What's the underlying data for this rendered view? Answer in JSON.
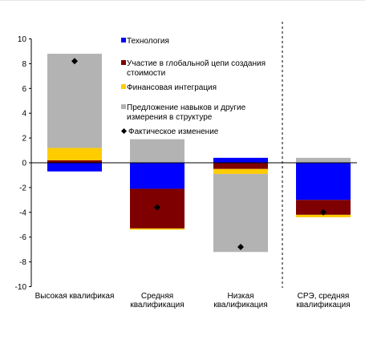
{
  "chart_data": {
    "type": "bar",
    "stacked": true,
    "ylim": [
      -10,
      10
    ],
    "yticks": [
      10,
      8,
      6,
      4,
      2,
      0,
      -2,
      -4,
      -6,
      -8,
      -10
    ],
    "categories": [
      [
        "Высокая квалификая"
      ],
      [
        "Средняя",
        "квалификация"
      ],
      [
        "Низкая",
        "квалификация"
      ],
      [
        "СРЭ, средняя",
        "квалификация"
      ]
    ],
    "series": [
      {
        "name": "Технология",
        "color": "#0000ff",
        "values": [
          -0.7,
          -2.1,
          0.4,
          -3.0
        ]
      },
      {
        "name": "Участие в глобальной цепи создания стоимости",
        "color": "#7f0000",
        "values": [
          0.2,
          -3.2,
          -0.5,
          -1.2
        ]
      },
      {
        "name": "Финансовая интеграция",
        "color": "#ffcc00",
        "values": [
          1.0,
          -0.1,
          -0.4,
          -0.2
        ]
      },
      {
        "name": "Предложение навыков и другие измерения в структуре",
        "color": "#b3b3b3",
        "values": [
          7.6,
          1.9,
          -6.3,
          0.4
        ]
      }
    ],
    "actual": {
      "name": "Фактическое изменение",
      "values": [
        8.2,
        -3.6,
        -6.8,
        -4.0
      ]
    },
    "grid": false,
    "legend_position": "top-center"
  },
  "legend": {
    "technology": "Технология",
    "gvc_line1": "Участие в глобальной цепи создания",
    "gvc_line2": "стоимости",
    "finance": "Финансовая интеграция",
    "skills_line1": "Предложение навыков и другие",
    "skills_line2": "измерения в структуре",
    "actual": "Фактическое изменение"
  }
}
